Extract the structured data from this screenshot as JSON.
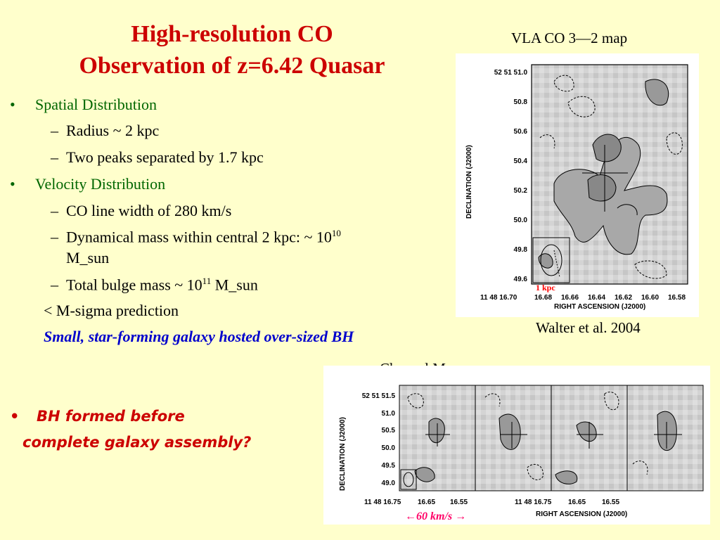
{
  "title": {
    "line1": "High-resolution CO",
    "line2": "Observation of z=6.42 Quasar"
  },
  "bullets": {
    "spatial": "Spatial Distribution",
    "radius": "Radius ~ 2 kpc",
    "peaks": "Two peaks separated by 1.7 kpc",
    "velocity": "Velocity Distribution",
    "linewidth": "CO line width of 280 km/s",
    "dynmass_a": "Dynamical mass within central 2 kpc: ~ 10",
    "dynmass_exp": "10",
    "dynmass_b": "M_sun",
    "bulge_a": "Total bulge mass ~ 10",
    "bulge_exp": "11",
    "bulge_b": " M_sun",
    "msigma": "< M-sigma prediction",
    "small": "Small, star-forming galaxy hosted over-sized BH",
    "bh1": "BH formed before",
    "bh2": "complete galaxy assembly?"
  },
  "symbols": {
    "bullet": "•",
    "dash": "–"
  },
  "vla": {
    "caption": "VLA CO 3—2 map",
    "credit": "Walter et al. 2004",
    "ylabel": "DECLINATION (J2000)",
    "xlabel": "RIGHT ASCENSION (J2000)",
    "yticks": [
      "52 51 51.0",
      "50.8",
      "50.6",
      "50.4",
      "50.2",
      "50.0",
      "49.8",
      "49.6"
    ],
    "xticks": [
      "11 48 16.70",
      "16.68",
      "16.66",
      "16.64",
      "16.62",
      "16.60",
      "16.58"
    ],
    "scale": "1 kpc"
  },
  "channel": {
    "caption": "Channel Maps",
    "ylabel": "DECLINATION (J2000)",
    "yticks": [
      "52 51 51.5",
      "51.0",
      "50.5",
      "50.0",
      "49.5",
      "49.0"
    ],
    "xticks_left": [
      "11 48 16.75",
      "16.65",
      "16.55"
    ],
    "xticks_right": [
      "11 48 16.75",
      "16.65",
      "16.55"
    ],
    "xlabel": "RIGHT ASCENSION (J2000)",
    "velocity": "60 km/s",
    "arrow_left": "←",
    "arrow_right": "→"
  }
}
